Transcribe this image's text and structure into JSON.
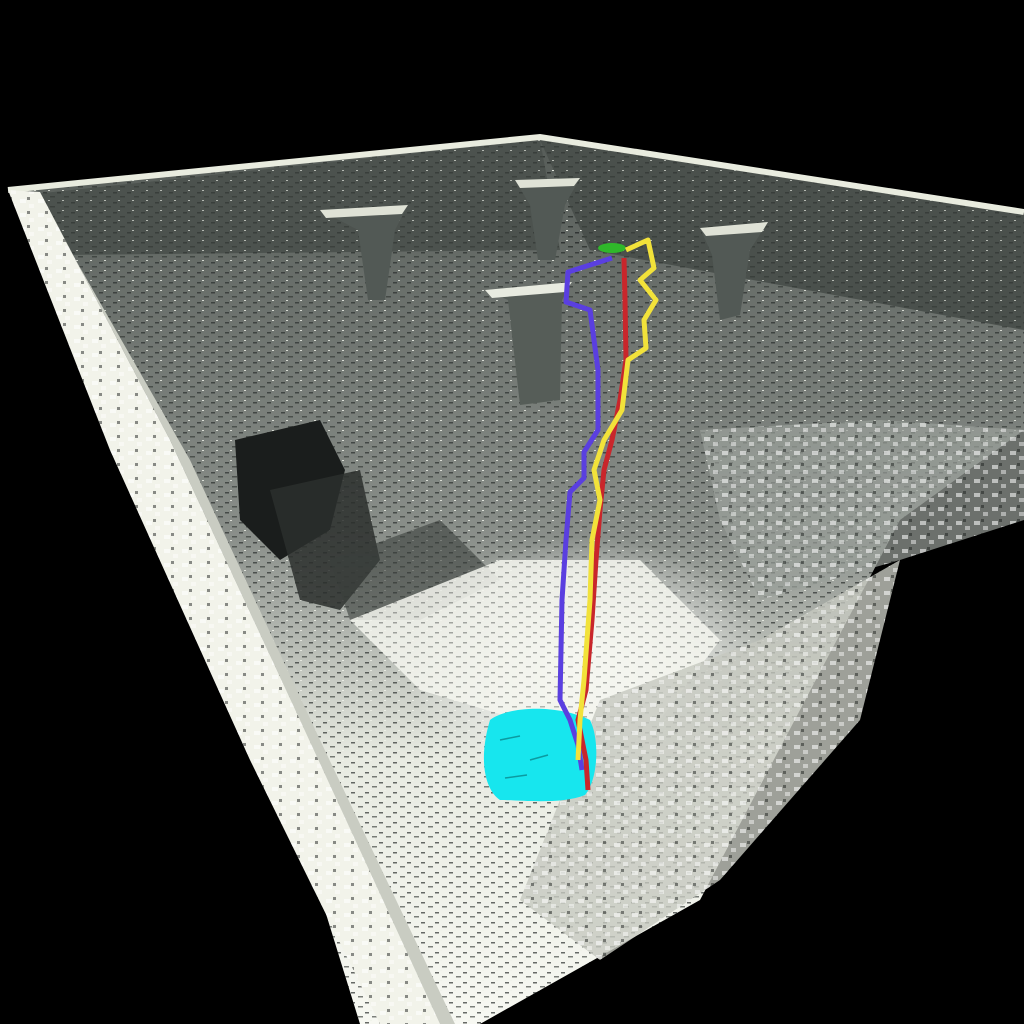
{
  "scene": {
    "background_color": "#000000",
    "map_wall_color": "#4c524e",
    "map_floor_color": "#f4f6ee",
    "goal_region_color": "#17e6ee",
    "start_marker_color": "#2fb82a"
  },
  "paths": [
    {
      "id": "path-blue",
      "color": "#5a3fe0"
    },
    {
      "id": "path-red",
      "color": "#c9262b"
    },
    {
      "id": "path-yellow",
      "color": "#f2e23a"
    }
  ]
}
